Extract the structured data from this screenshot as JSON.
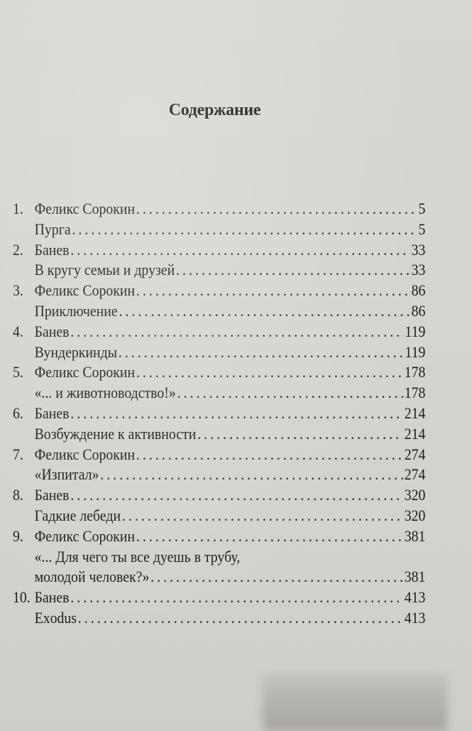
{
  "title": "Содержание",
  "entries": [
    {
      "num": "1.",
      "title": "Феликс Сорокин",
      "page": "5"
    },
    {
      "num": "",
      "title": "Пурга",
      "page": "5"
    },
    {
      "num": "2.",
      "title": "Банев",
      "page": "33"
    },
    {
      "num": "",
      "title": "В кругу семьи и друзей",
      "page": "33"
    },
    {
      "num": "3.",
      "title": "Феликс Сорокин",
      "page": "86"
    },
    {
      "num": "",
      "title": "Приключение",
      "page": "86"
    },
    {
      "num": "4.",
      "title": "Банев",
      "page": "119"
    },
    {
      "num": "",
      "title": "Вундеркинды",
      "page": "119"
    },
    {
      "num": "5.",
      "title": "Феликс Сорокин",
      "page": "178"
    },
    {
      "num": "",
      "title": "«... и животноводство!»",
      "page": "178"
    },
    {
      "num": "6.",
      "title": "Банев",
      "page": "214"
    },
    {
      "num": "",
      "title": "Возбуждение к активности",
      "page": "214"
    },
    {
      "num": "7.",
      "title": "Феликс Сорокин",
      "page": "274"
    },
    {
      "num": "",
      "title": "«Изпитал»",
      "page": "274"
    },
    {
      "num": "8.",
      "title": "Банев",
      "page": "320"
    },
    {
      "num": "",
      "title": "Гадкие лебеди",
      "page": "320"
    },
    {
      "num": "9.",
      "title": "Феликс Сорокин",
      "page": "381"
    },
    {
      "num": "",
      "title": "«... Для чего ты все дуешь в трубу,",
      "page": ""
    },
    {
      "num": "",
      "title": "молодой человек?»",
      "page": "381"
    },
    {
      "num": "10.",
      "title": "Банев",
      "page": "413"
    },
    {
      "num": "",
      "title": "Exodus",
      "page": "413"
    }
  ]
}
